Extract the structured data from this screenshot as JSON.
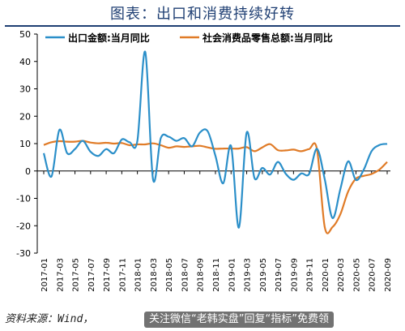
{
  "title": "图表：出口和消费持续好转",
  "source_text": "资料来源：Wind，",
  "watermark_text": "关注微信“老韩实盘”回复“指标”免费领",
  "chart_data": {
    "type": "line",
    "yticks": [
      "50",
      "40",
      "30",
      "20",
      "10",
      "0",
      "-10",
      "-20",
      "-30"
    ],
    "ylim": [
      -30,
      50
    ],
    "x_tick_labels": [
      "2017-01",
      "2017-03",
      "2017-05",
      "2017-07",
      "2017-09",
      "2017-11",
      "2018-01",
      "2018-03",
      "2018-05",
      "2018-07",
      "2018-09",
      "2018-11",
      "2019-01",
      "2019-03",
      "2019-05",
      "2019-07",
      "2019-09",
      "2019-11",
      "2020-01",
      "2020-03",
      "2020-05",
      "2020-07",
      "2020-09"
    ],
    "x": [
      "2017-01",
      "2017-02",
      "2017-03",
      "2017-04",
      "2017-05",
      "2017-06",
      "2017-07",
      "2017-08",
      "2017-09",
      "2017-10",
      "2017-11",
      "2017-12",
      "2018-01",
      "2018-02",
      "2018-03",
      "2018-04",
      "2018-05",
      "2018-06",
      "2018-07",
      "2018-08",
      "2018-09",
      "2018-10",
      "2018-11",
      "2018-12",
      "2019-01",
      "2019-02",
      "2019-03",
      "2019-04",
      "2019-05",
      "2019-06",
      "2019-07",
      "2019-08",
      "2019-09",
      "2019-10",
      "2019-11",
      "2019-12",
      "2020-01",
      "2020-02",
      "2020-03",
      "2020-04",
      "2020-05",
      "2020-06",
      "2020-07",
      "2020-08",
      "2020-09"
    ],
    "series": [
      {
        "name": "出口金额:当月同比",
        "color": "#2b8fc9",
        "values": [
          6.5,
          -2,
          15,
          6.5,
          8,
          11,
          7,
          5.5,
          8,
          6.5,
          11.5,
          10.5,
          11,
          43.5,
          -3,
          12,
          12.5,
          11,
          12,
          9,
          14,
          14.5,
          5.5,
          -4.5,
          9.1,
          -20.7,
          14,
          -2.6,
          1.1,
          -1.3,
          3.3,
          -1,
          -3.2,
          -0.9,
          -1.1,
          8.1,
          -3,
          -17.2,
          -6.6,
          3.5,
          -3.3,
          0.5,
          7.2,
          9.5,
          9.9
        ]
      },
      {
        "name": "社会消费品零售总额:当月同比",
        "color": "#e07b27",
        "values": [
          9.5,
          10.5,
          10.9,
          10.7,
          10.7,
          11,
          10.4,
          10.1,
          10.3,
          10,
          10.2,
          9.4,
          9.7,
          9.7,
          10.1,
          9.4,
          8.5,
          9,
          8.8,
          9,
          9.2,
          8.6,
          8.1,
          8.2,
          8.2,
          8.2,
          8.7,
          7.2,
          8.6,
          9.8,
          7.6,
          7.5,
          7.8,
          7.2,
          8,
          8,
          -20.5,
          -20.5,
          -15.8,
          -7.5,
          -2.8,
          -1.8,
          -1.1,
          0.5,
          3.3
        ]
      }
    ]
  }
}
